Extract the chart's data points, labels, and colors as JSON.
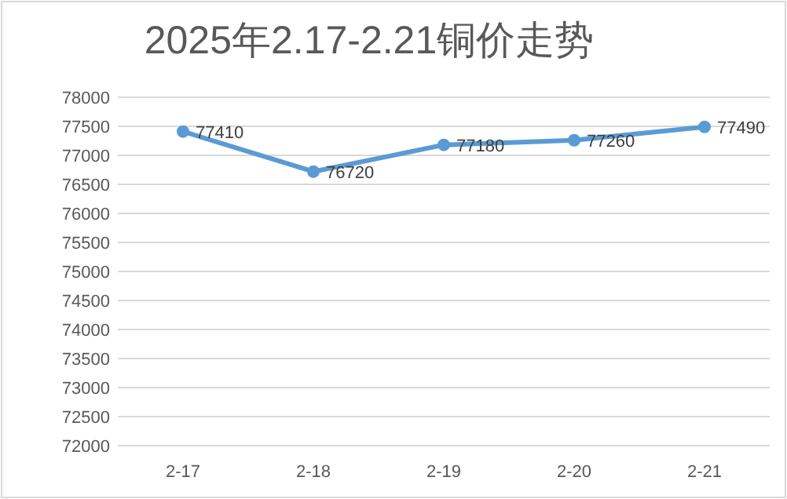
{
  "chart_data": {
    "type": "line",
    "title": "2025年2.17-2.21铜价走势",
    "categories": [
      "2-17",
      "2-18",
      "2-19",
      "2-20",
      "2-21"
    ],
    "series": [
      {
        "color": "#5b9bd5",
        "values": [
          77410,
          76720,
          77180,
          77260,
          77490
        ]
      }
    ],
    "ylim": [
      72000,
      78000
    ],
    "yticks": [
      72000,
      72500,
      73000,
      73500,
      74000,
      74500,
      75000,
      75500,
      76000,
      76500,
      77000,
      77500,
      78000
    ],
    "grid": "y",
    "marker": "circle",
    "data_labels": true
  }
}
